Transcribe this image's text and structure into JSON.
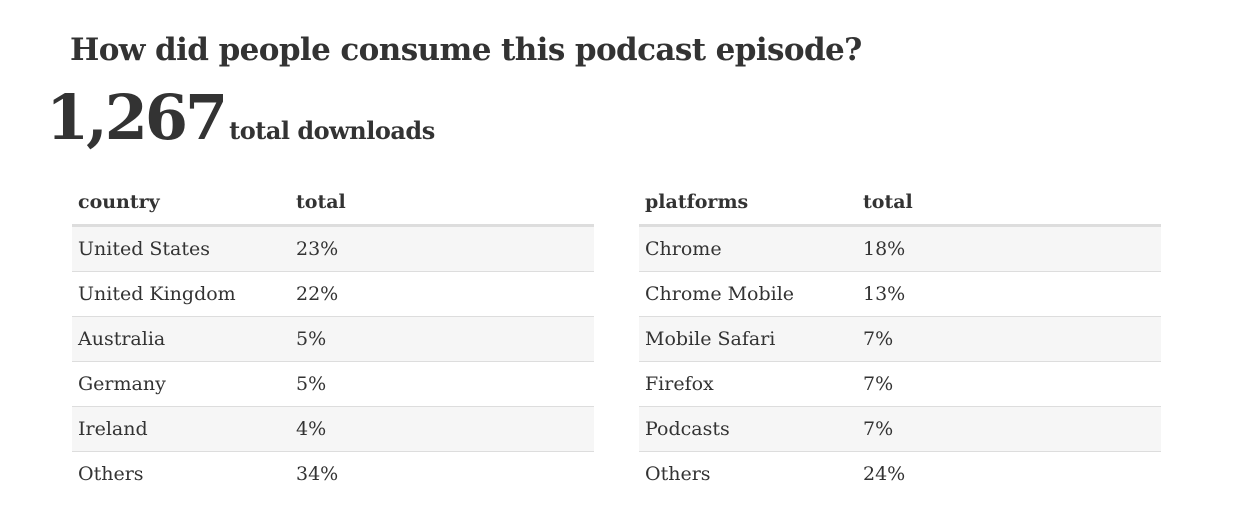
{
  "title": "How did people consume this podcast episode?",
  "total": {
    "number": "1,267",
    "label": "total downloads"
  },
  "country_table": {
    "headers": [
      "country",
      "total"
    ],
    "rows": [
      [
        "United States",
        "23%"
      ],
      [
        "United Kingdom",
        "22%"
      ],
      [
        "Australia",
        "5%"
      ],
      [
        "Germany",
        "5%"
      ],
      [
        "Ireland",
        "4%"
      ],
      [
        "Others",
        "34%"
      ]
    ]
  },
  "platform_table": {
    "headers": [
      "platforms",
      "total"
    ],
    "rows": [
      [
        "Chrome",
        "18%"
      ],
      [
        "Chrome Mobile",
        "13%"
      ],
      [
        "Mobile Safari",
        "7%"
      ],
      [
        "Firefox",
        "7%"
      ],
      [
        "Podcasts",
        "7%"
      ],
      [
        "Others",
        "24%"
      ]
    ]
  }
}
